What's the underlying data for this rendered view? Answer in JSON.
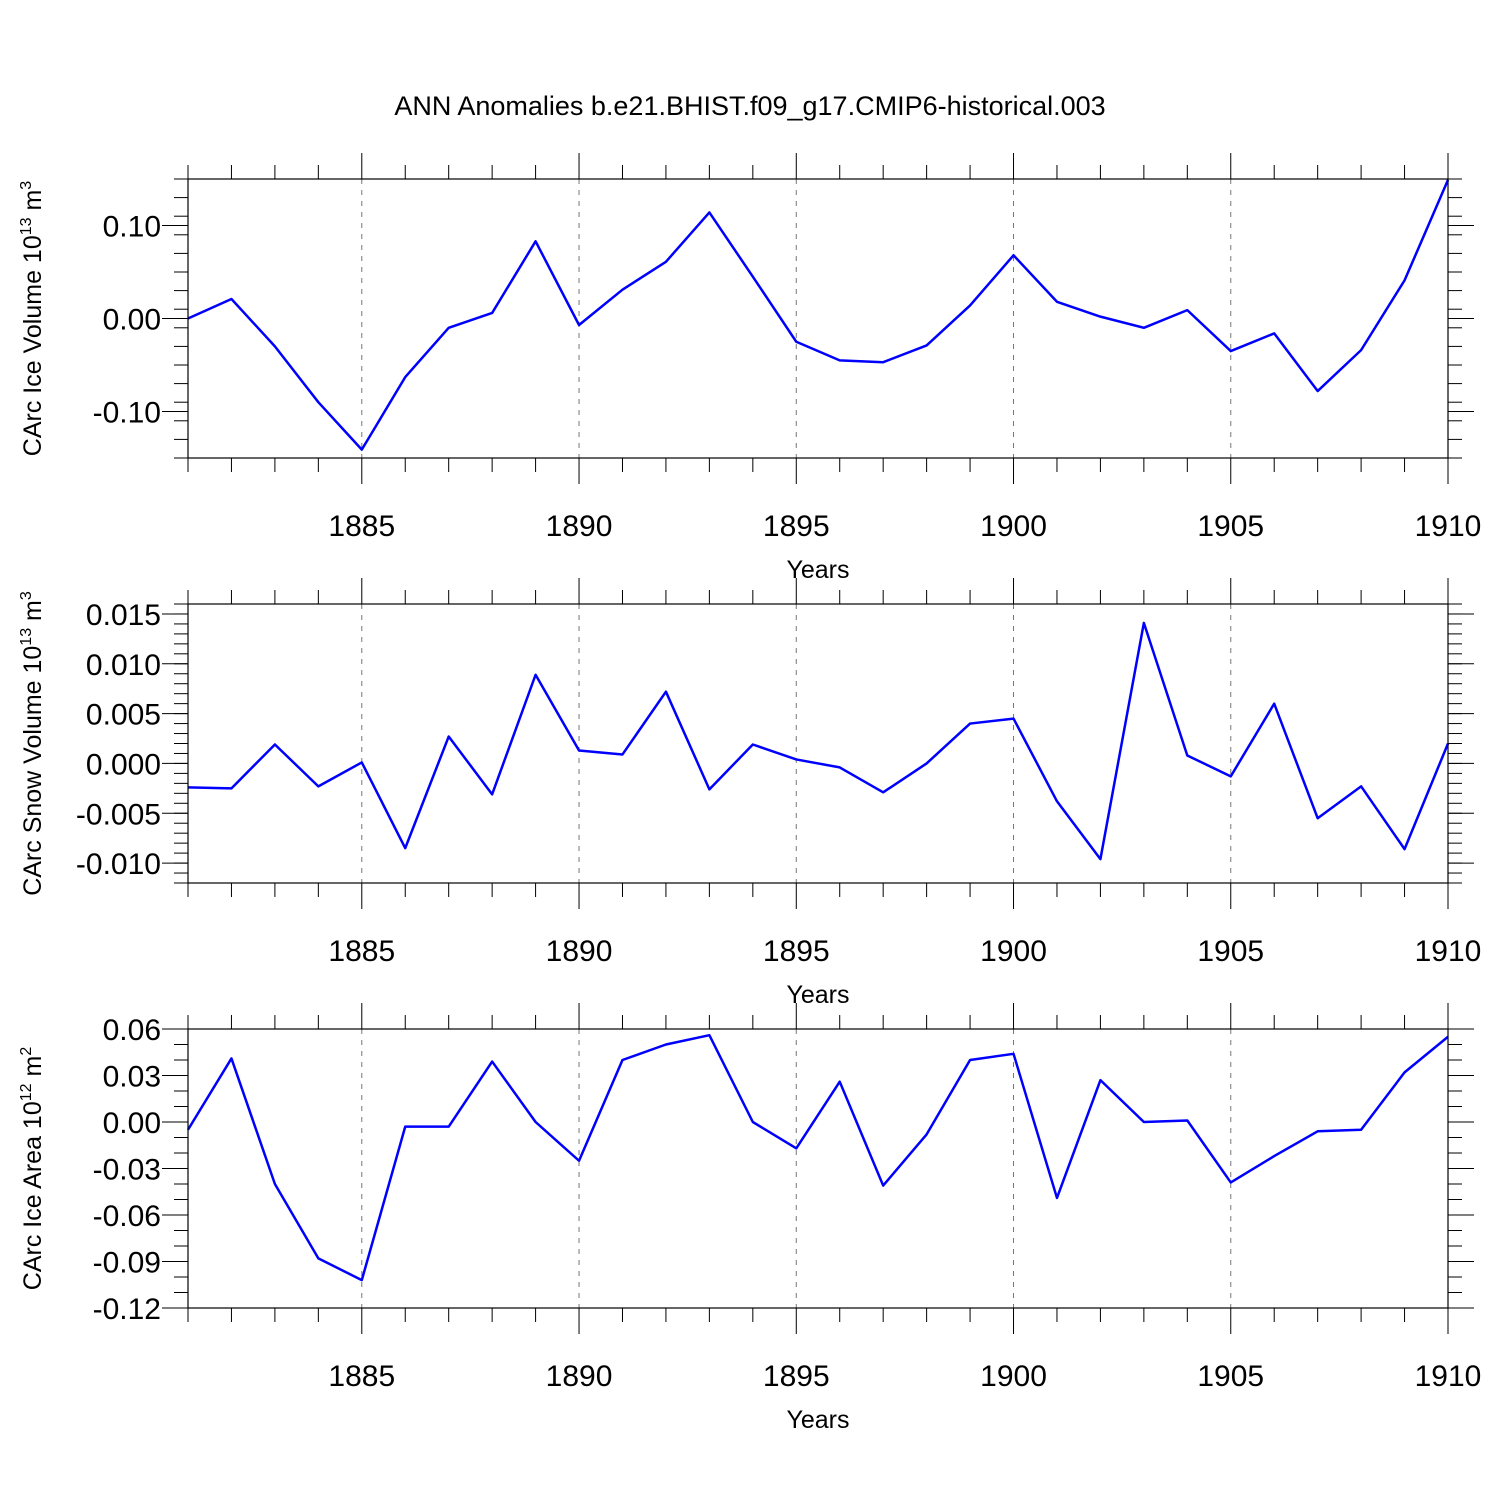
{
  "title": "ANN Anomalies b.e21.BHIST.f09_g17.CMIP6-historical.003",
  "colors": {
    "line": "#0000ff",
    "frame": "#000000",
    "grid": "#777777"
  },
  "chart_data": [
    {
      "type": "line",
      "name": "ice-volume",
      "ylabel_main": "CArc Ice Volume 10",
      "ylabel_exp": "13",
      "ylabel_unit": " m",
      "ylabel_unit_exp": "3",
      "xlabel": "Years",
      "xlim": [
        1881,
        1910
      ],
      "ylim": [
        -0.15,
        0.15
      ],
      "xticks": [
        1885,
        1890,
        1895,
        1900,
        1905,
        1910
      ],
      "yticks": [
        -0.1,
        0.0,
        0.1
      ],
      "ytick_labels": [
        "-0.10",
        "0.00",
        "0.10"
      ],
      "yminor_step": 0.02,
      "x": [
        1881,
        1882,
        1883,
        1884,
        1885,
        1886,
        1887,
        1888,
        1889,
        1890,
        1891,
        1892,
        1893,
        1894,
        1895,
        1896,
        1897,
        1898,
        1899,
        1900,
        1901,
        1902,
        1903,
        1904,
        1905,
        1906,
        1907,
        1908,
        1909,
        1910
      ],
      "values": [
        0.0,
        0.021,
        -0.03,
        -0.09,
        -0.141,
        -0.063,
        -0.01,
        0.006,
        0.083,
        -0.007,
        0.031,
        0.061,
        0.114,
        0.045,
        -0.025,
        -0.045,
        -0.047,
        -0.029,
        0.014,
        0.068,
        0.018,
        0.002,
        -0.01,
        0.009,
        -0.035,
        -0.016,
        -0.078,
        -0.034,
        0.041,
        0.149
      ]
    },
    {
      "type": "line",
      "name": "snow-volume",
      "ylabel_main": "CArc Snow Volume 10",
      "ylabel_exp": "13",
      "ylabel_unit": " m",
      "ylabel_unit_exp": "3",
      "xlabel": "Years",
      "xlim": [
        1881,
        1910
      ],
      "ylim": [
        -0.012,
        0.016
      ],
      "xticks": [
        1885,
        1890,
        1895,
        1900,
        1905,
        1910
      ],
      "yticks": [
        -0.01,
        -0.005,
        0.0,
        0.005,
        0.01,
        0.015
      ],
      "ytick_labels": [
        "-0.010",
        "-0.005",
        "0.000",
        "0.005",
        "0.010",
        "0.015"
      ],
      "yminor_step": 0.001,
      "x": [
        1881,
        1882,
        1883,
        1884,
        1885,
        1886,
        1887,
        1888,
        1889,
        1890,
        1891,
        1892,
        1893,
        1894,
        1895,
        1896,
        1897,
        1898,
        1899,
        1900,
        1901,
        1902,
        1903,
        1904,
        1905,
        1906,
        1907,
        1908,
        1909,
        1910
      ],
      "values": [
        -0.0024,
        -0.0025,
        0.0019,
        -0.0023,
        0.0001,
        -0.0085,
        0.0027,
        -0.0031,
        0.0089,
        0.0013,
        0.0009,
        0.0072,
        -0.0026,
        0.0019,
        0.0004,
        -0.0004,
        -0.0029,
        0.0,
        0.004,
        0.0045,
        -0.0038,
        -0.0096,
        0.0141,
        0.0008,
        -0.0013,
        0.006,
        -0.0055,
        -0.0023,
        -0.0086,
        0.002
      ]
    },
    {
      "type": "line",
      "name": "ice-area",
      "ylabel_main": "CArc Ice Area 10",
      "ylabel_exp": "12",
      "ylabel_unit": " m",
      "ylabel_unit_exp": "2",
      "xlabel": "Years",
      "xlim": [
        1881,
        1910
      ],
      "ylim": [
        -0.12,
        0.06
      ],
      "xticks": [
        1885,
        1890,
        1895,
        1900,
        1905,
        1910
      ],
      "yticks": [
        -0.12,
        -0.09,
        -0.06,
        -0.03,
        0.0,
        0.03,
        0.06
      ],
      "ytick_labels": [
        "-0.12",
        "-0.09",
        "-0.06",
        "-0.03",
        "0.00",
        "0.03",
        "0.06"
      ],
      "yminor_step": 0.01,
      "x": [
        1881,
        1882,
        1883,
        1884,
        1885,
        1886,
        1887,
        1888,
        1889,
        1890,
        1891,
        1892,
        1893,
        1894,
        1895,
        1896,
        1897,
        1898,
        1899,
        1900,
        1901,
        1902,
        1903,
        1904,
        1905,
        1906,
        1907,
        1908,
        1909,
        1910
      ],
      "values": [
        -0.005,
        0.041,
        -0.04,
        -0.088,
        -0.102,
        -0.003,
        -0.003,
        0.039,
        0.0,
        -0.025,
        0.04,
        0.05,
        0.056,
        0.0,
        -0.017,
        0.026,
        -0.041,
        -0.008,
        0.04,
        0.044,
        -0.049,
        0.027,
        0.0,
        0.001,
        -0.039,
        -0.022,
        -0.006,
        -0.005,
        0.032,
        0.055
      ]
    }
  ]
}
